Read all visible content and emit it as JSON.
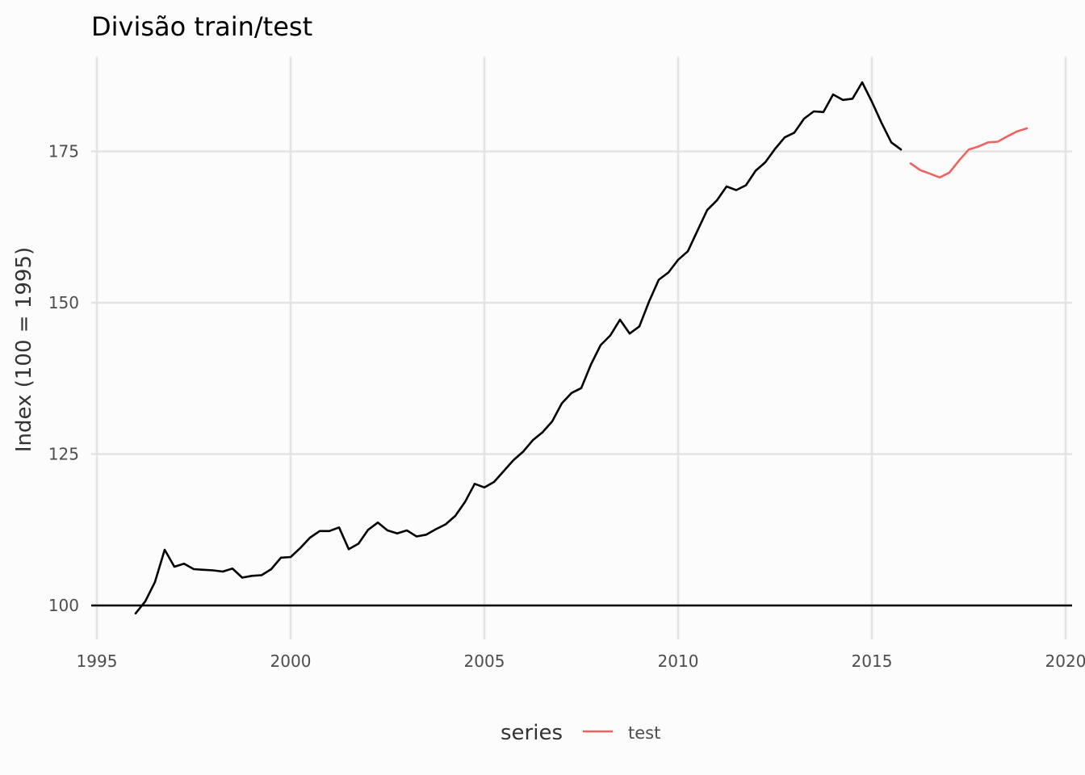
{
  "chart_data": {
    "type": "line",
    "title": "Divisão train/test",
    "xlabel": "",
    "ylabel": "Index (100 = 1995)",
    "xlim": [
      1995,
      2020
    ],
    "ylim": [
      95,
      193
    ],
    "x_ticks": [
      1995,
      2000,
      2005,
      2010,
      2015,
      2020
    ],
    "x_tick_labels": [
      "1995",
      "2000",
      "2005",
      "2010",
      "2015",
      "2020"
    ],
    "y_ticks": [
      100,
      125,
      150,
      175
    ],
    "y_tick_labels": [
      "100",
      "125",
      "150",
      "175"
    ],
    "grid": true,
    "reference_line": 100,
    "legend": {
      "title": "series",
      "position": "bottom",
      "entries": [
        "test"
      ]
    },
    "series": [
      {
        "color": "#000000",
        "x": [
          1996.0,
          1996.25,
          1996.5,
          1996.75,
          1997.0,
          1997.25,
          1997.5,
          1997.75,
          1998.0,
          1998.25,
          1998.5,
          1998.75,
          1999.0,
          1999.25,
          1999.5,
          1999.75,
          2000.0,
          2000.25,
          2000.5,
          2000.75,
          2001.0,
          2001.25,
          2001.5,
          2001.75,
          2002.0,
          2002.25,
          2002.5,
          2002.75,
          2003.0,
          2003.25,
          2003.5,
          2003.75,
          2004.0,
          2004.25,
          2004.5,
          2004.75,
          2005.0,
          2005.25,
          2005.5,
          2005.75,
          2006.0,
          2006.25,
          2006.5,
          2006.75,
          2007.0,
          2007.25,
          2007.5,
          2007.75,
          2008.0,
          2008.25,
          2008.5,
          2008.75,
          2009.0,
          2009.25,
          2009.5,
          2009.75,
          2010.0,
          2010.25,
          2010.5,
          2010.75,
          2011.0,
          2011.25,
          2011.5,
          2011.75,
          2012.0,
          2012.25,
          2012.5,
          2012.75,
          2013.0,
          2013.25,
          2013.5,
          2013.75,
          2014.0,
          2014.25,
          2014.5,
          2014.75,
          2015.0,
          2015.25,
          2015.5,
          2015.75
        ],
        "values": [
          98.7,
          100.7,
          103.9,
          109.2,
          106.4,
          106.9,
          106.0,
          105.9,
          105.8,
          105.6,
          106.1,
          104.6,
          104.9,
          105.0,
          106.0,
          107.9,
          108.0,
          109.5,
          111.2,
          112.3,
          112.3,
          112.9,
          109.3,
          110.2,
          112.5,
          113.7,
          112.4,
          111.9,
          112.4,
          111.4,
          111.7,
          112.6,
          113.4,
          114.8,
          117.1,
          120.1,
          119.5,
          120.4,
          122.2,
          124.0,
          125.4,
          127.3,
          128.6,
          130.4,
          133.4,
          135.1,
          135.9,
          139.8,
          143.0,
          144.6,
          147.2,
          144.9,
          146.1,
          150.2,
          153.8,
          155.0,
          157.1,
          158.5,
          161.9,
          165.3,
          166.9,
          169.2,
          168.6,
          169.4,
          171.8,
          173.2,
          175.4,
          177.3,
          178.1,
          180.4,
          181.6,
          181.5,
          184.4,
          183.5,
          183.7,
          186.4,
          183.2,
          179.7,
          176.5,
          175.3
        ]
      },
      {
        "name": "test",
        "color": "#f0625f",
        "x": [
          2016.0,
          2016.25,
          2016.5,
          2016.75,
          2017.0,
          2017.25,
          2017.5,
          2017.75,
          2018.0,
          2018.25,
          2018.5,
          2018.75,
          2019.0
        ],
        "values": [
          173.0,
          171.9,
          171.3,
          170.7,
          171.5,
          173.5,
          175.3,
          175.8,
          176.5,
          176.6,
          177.5,
          178.3,
          178.8
        ]
      }
    ]
  }
}
